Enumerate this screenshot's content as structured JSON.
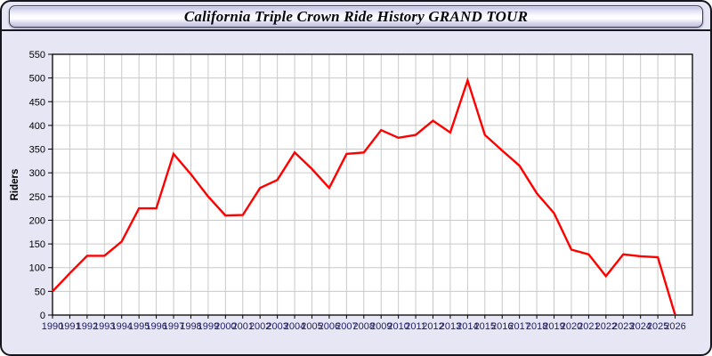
{
  "window": {
    "title": "California Triple Crown Ride History GRAND TOUR",
    "background_color": "#e6e6f4",
    "border_color": "#15151d"
  },
  "chart_data": {
    "type": "line",
    "title": "California Triple Crown Ride History GRAND TOUR",
    "xlabel": "",
    "ylabel": "Riders",
    "x": [
      "1990",
      "1991",
      "1992",
      "1993",
      "1994",
      "1995",
      "1996",
      "1997",
      "1998",
      "1999",
      "2000",
      "2001",
      "2002",
      "2003",
      "2004",
      "2005",
      "2006",
      "2007",
      "2008",
      "2009",
      "2010",
      "2011",
      "2012",
      "2013",
      "2014",
      "2015",
      "2016",
      "2017",
      "2018",
      "2019",
      "2020",
      "2021",
      "2022",
      "2023",
      "2024",
      "2025",
      "2026"
    ],
    "series": [
      {
        "name": "Riders",
        "color": "#ff0000",
        "values": [
          50,
          88,
          125,
          125,
          155,
          225,
          225,
          340,
          297,
          250,
          210,
          211,
          268,
          285,
          343,
          308,
          268,
          340,
          343,
          390,
          374,
          380,
          410,
          385,
          495,
          380,
          347,
          315,
          257,
          215,
          138,
          128,
          82,
          128,
          124,
          122,
          0
        ]
      }
    ],
    "ylim": [
      0,
      550
    ],
    "ytick_step": 50,
    "grid": true,
    "legend": "none",
    "plot_bg": "#ffffff",
    "grid_color": "#c9c9c9",
    "axis_color": "#000000",
    "x_tick_label_color": "#1c1c66",
    "y_tick_label_color": "#000000"
  }
}
